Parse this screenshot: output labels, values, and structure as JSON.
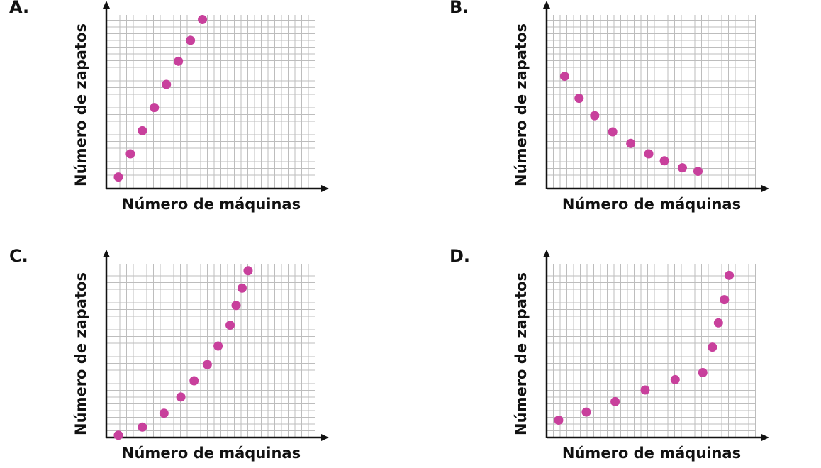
{
  "colors": {
    "point": "#c8409c",
    "grid": "#bdbdbd",
    "axis": "#111111"
  },
  "chart_data": [
    {
      "type": "scatter",
      "label": "A.",
      "xlabel": "Número de máquinas",
      "ylabel": "Número de zapatos",
      "xlim": [
        0,
        18
      ],
      "ylim": [
        0,
        15
      ],
      "grid": true,
      "points": [
        {
          "x": 1,
          "y": 1
        },
        {
          "x": 2,
          "y": 3
        },
        {
          "x": 3,
          "y": 5
        },
        {
          "x": 4,
          "y": 7
        },
        {
          "x": 5,
          "y": 9
        },
        {
          "x": 6,
          "y": 11
        },
        {
          "x": 7,
          "y": 12.8
        },
        {
          "x": 8,
          "y": 14.6
        }
      ]
    },
    {
      "type": "scatter",
      "label": "B.",
      "xlabel": "Número de máquinas",
      "ylabel": "Número de zapatos",
      "xlim": [
        0,
        18
      ],
      "ylim": [
        0,
        15
      ],
      "grid": true,
      "points": [
        {
          "x": 1.5,
          "y": 9.7
        },
        {
          "x": 2.7,
          "y": 7.8
        },
        {
          "x": 4,
          "y": 6.3
        },
        {
          "x": 5.5,
          "y": 4.9
        },
        {
          "x": 7,
          "y": 3.9
        },
        {
          "x": 8.5,
          "y": 3
        },
        {
          "x": 9.8,
          "y": 2.4
        },
        {
          "x": 11.3,
          "y": 1.8
        },
        {
          "x": 12.6,
          "y": 1.5
        }
      ]
    },
    {
      "type": "scatter",
      "label": "C.",
      "xlabel": "Número de máquinas",
      "ylabel": "Número de zapatos",
      "xlim": [
        0,
        18
      ],
      "ylim": [
        0,
        15
      ],
      "grid": true,
      "points": [
        {
          "x": 1,
          "y": 0.2
        },
        {
          "x": 3,
          "y": 0.9
        },
        {
          "x": 4.8,
          "y": 2.1
        },
        {
          "x": 6.2,
          "y": 3.5
        },
        {
          "x": 7.3,
          "y": 4.9
        },
        {
          "x": 8.4,
          "y": 6.3
        },
        {
          "x": 9.3,
          "y": 7.9
        },
        {
          "x": 10.3,
          "y": 9.7
        },
        {
          "x": 10.8,
          "y": 11.4
        },
        {
          "x": 11.3,
          "y": 12.9
        },
        {
          "x": 11.8,
          "y": 14.4
        }
      ]
    },
    {
      "type": "scatter",
      "label": "D.",
      "xlabel": "Número de máquinas",
      "ylabel": "Número de zapatos",
      "xlim": [
        0,
        18
      ],
      "ylim": [
        0,
        15
      ],
      "grid": true,
      "points": [
        {
          "x": 1,
          "y": 1.5
        },
        {
          "x": 3.3,
          "y": 2.2
        },
        {
          "x": 5.7,
          "y": 3.1
        },
        {
          "x": 8.2,
          "y": 4.1
        },
        {
          "x": 10.7,
          "y": 5
        },
        {
          "x": 13,
          "y": 5.6
        },
        {
          "x": 13.8,
          "y": 7.8
        },
        {
          "x": 14.3,
          "y": 9.9
        },
        {
          "x": 14.8,
          "y": 11.9
        },
        {
          "x": 15.2,
          "y": 14
        }
      ]
    }
  ]
}
